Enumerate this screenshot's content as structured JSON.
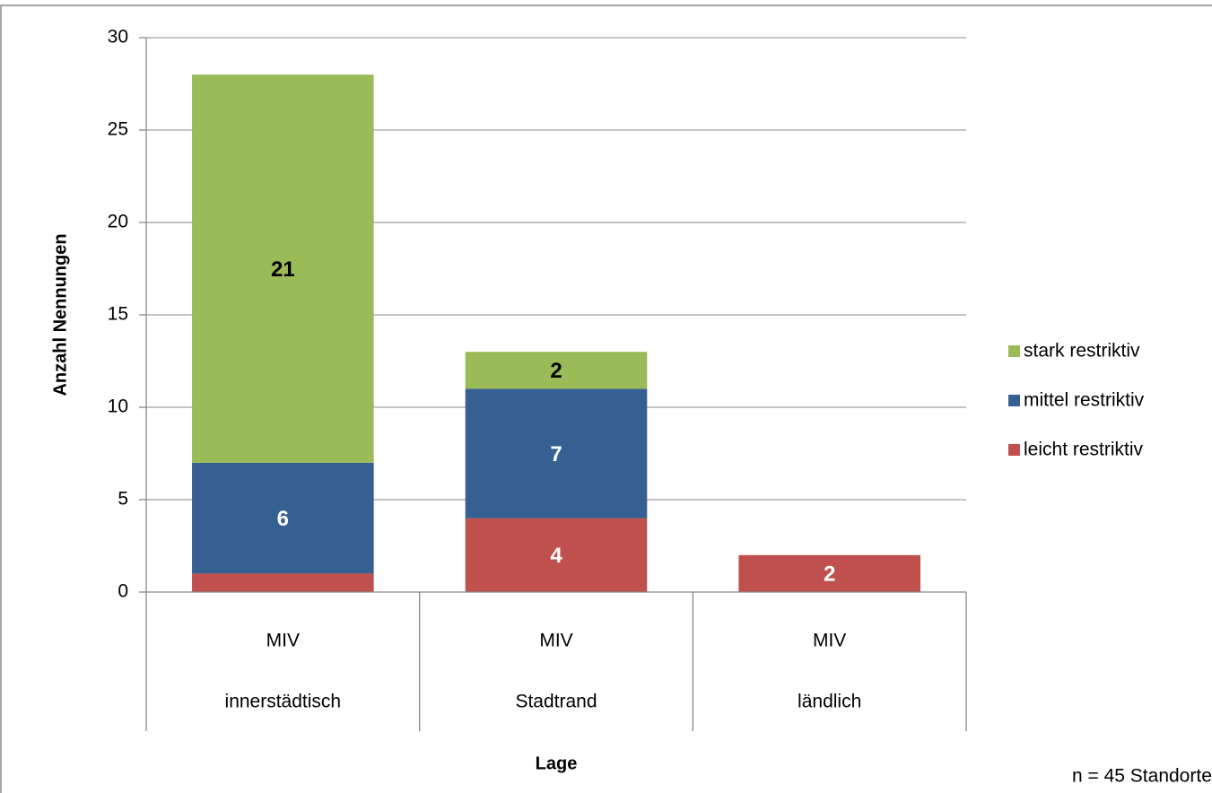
{
  "chart_data": {
    "type": "stacked_bar",
    "y_label": "Anzahl Nennungen",
    "x_label": "Lage",
    "note": "n = 45 Standorte",
    "categories": [
      "MIV",
      "MIV",
      "MIV"
    ],
    "groups": [
      "innerstädtisch",
      "Stadtrand",
      "ländlich"
    ],
    "series": [
      {
        "name": "leicht restriktiv",
        "color": "#c0504d",
        "label_color": "#ffffff",
        "values": [
          1,
          4,
          2
        ],
        "value_labels": [
          null,
          "4",
          "2"
        ]
      },
      {
        "name": "mittel restriktiv",
        "color": "#366092",
        "label_color": "#ffffff",
        "values": [
          6,
          7,
          0
        ],
        "value_labels": [
          "6",
          "7",
          null
        ]
      },
      {
        "name": "stark restriktiv",
        "color": "#9bbb59",
        "label_color": "#000000",
        "values": [
          21,
          2,
          0
        ],
        "value_labels": [
          "21",
          "2",
          null
        ]
      }
    ],
    "ylim": [
      0,
      30
    ],
    "yticks": [
      0,
      5,
      10,
      15,
      20,
      25,
      30
    ],
    "grid": true,
    "legend": "right"
  }
}
